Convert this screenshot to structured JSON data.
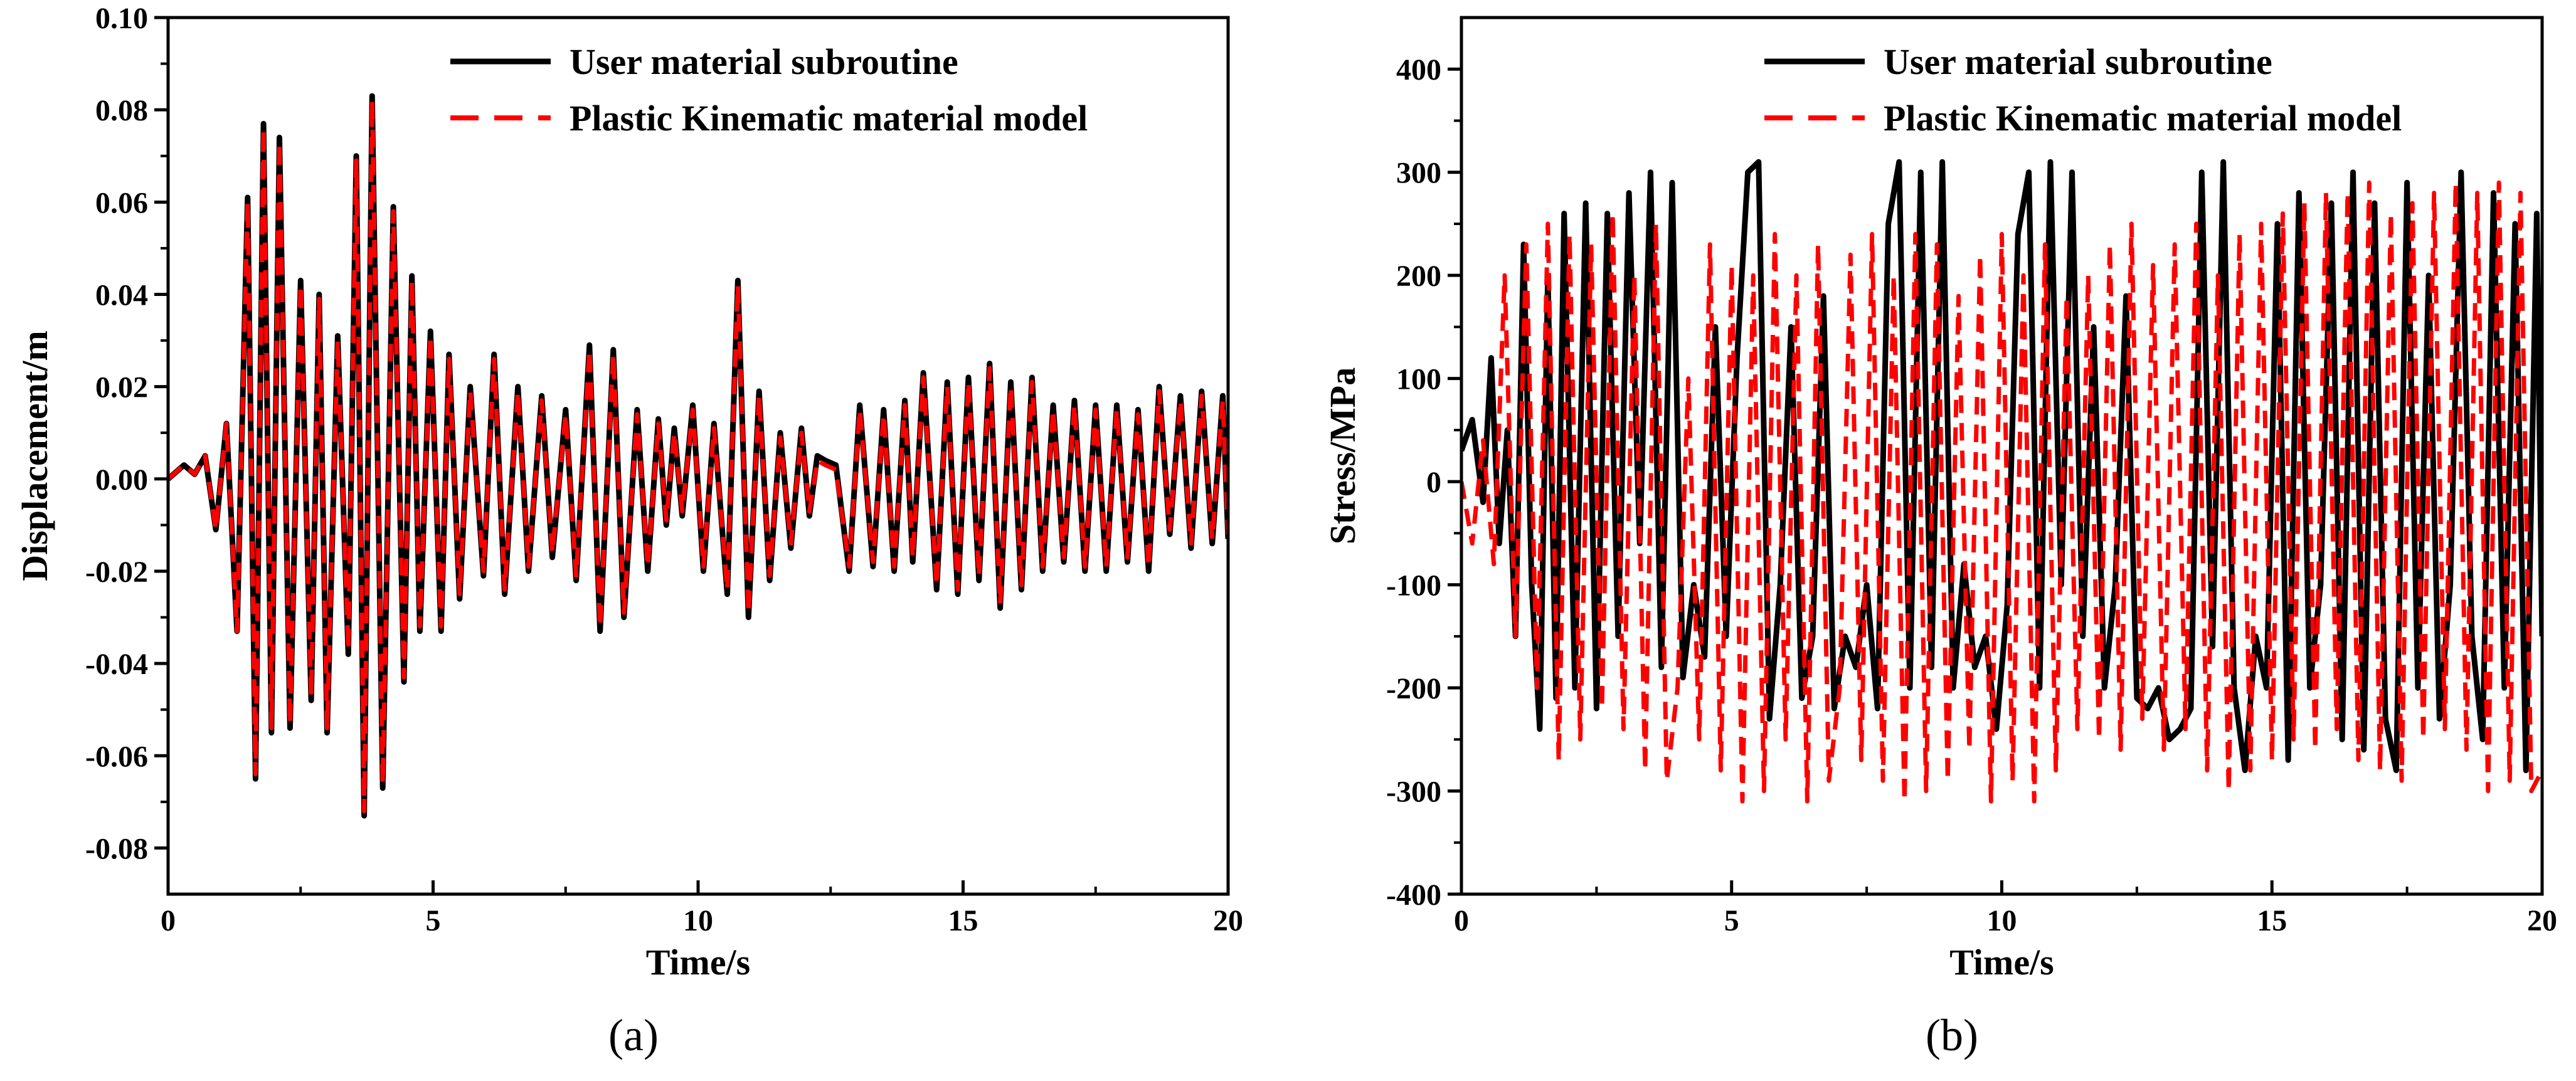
{
  "colors": {
    "user": "#000000",
    "plastic": "#ff0000"
  },
  "chart_data": [
    {
      "type": "line",
      "panel_label": "(a)",
      "xlabel": "Time/s",
      "ylabel": "Displacement/m",
      "xlim": [
        0,
        20
      ],
      "ylim": [
        -0.09,
        0.1
      ],
      "xticks": [
        0,
        5,
        10,
        15,
        20
      ],
      "xtick_labels": [
        "0",
        "5",
        "10",
        "15",
        "20"
      ],
      "yticks": [
        -0.08,
        -0.06,
        -0.04,
        -0.02,
        0,
        0.02,
        0.04,
        0.06,
        0.08,
        0.1
      ],
      "ytick_labels": [
        "-0.08",
        "-0.06",
        "-0.04",
        "-0.02",
        "0.00",
        "0.02",
        "0.04",
        "0.06",
        "0.08",
        "0.10"
      ],
      "legend_position": "top-right",
      "series": [
        {
          "name": "User material subroutine",
          "color": "#000000",
          "style": "solid",
          "x": [
            0,
            0.3,
            0.5,
            0.7,
            0.9,
            1.1,
            1.3,
            1.5,
            1.65,
            1.8,
            1.95,
            2.1,
            2.3,
            2.5,
            2.7,
            2.85,
            3.0,
            3.2,
            3.4,
            3.55,
            3.7,
            3.85,
            4.05,
            4.25,
            4.45,
            4.6,
            4.75,
            4.95,
            5.15,
            5.3,
            5.5,
            5.7,
            5.95,
            6.15,
            6.35,
            6.6,
            6.8,
            7.05,
            7.25,
            7.5,
            7.7,
            7.95,
            8.15,
            8.4,
            8.6,
            8.85,
            9.05,
            9.25,
            9.4,
            9.55,
            9.7,
            9.9,
            10.1,
            10.3,
            10.55,
            10.75,
            10.95,
            11.15,
            11.35,
            11.55,
            11.75,
            11.95,
            12.1,
            12.25,
            12.4,
            12.6,
            12.85,
            13.05,
            13.3,
            13.5,
            13.7,
            13.9,
            14.05,
            14.25,
            14.5,
            14.7,
            14.9,
            15.1,
            15.3,
            15.5,
            15.7,
            15.9,
            16.1,
            16.3,
            16.5,
            16.7,
            16.9,
            17.1,
            17.3,
            17.5,
            17.7,
            17.9,
            18.1,
            18.3,
            18.5,
            18.7,
            18.9,
            19.1,
            19.3,
            19.5,
            19.7,
            19.9,
            20
          ],
          "y": [
            0,
            0.003,
            0.001,
            0.005,
            -0.011,
            0.012,
            -0.033,
            0.061,
            -0.065,
            0.077,
            -0.055,
            0.074,
            -0.054,
            0.043,
            -0.048,
            0.04,
            -0.055,
            0.031,
            -0.038,
            0.07,
            -0.073,
            0.083,
            -0.067,
            0.059,
            -0.044,
            0.044,
            -0.033,
            0.032,
            -0.033,
            0.027,
            -0.026,
            0.02,
            -0.021,
            0.027,
            -0.025,
            0.02,
            -0.02,
            0.018,
            -0.017,
            0.015,
            -0.022,
            0.029,
            -0.033,
            0.028,
            -0.03,
            0.015,
            -0.02,
            0.013,
            -0.01,
            0.011,
            -0.008,
            0.016,
            -0.02,
            0.012,
            -0.025,
            0.043,
            -0.03,
            0.019,
            -0.022,
            0.01,
            -0.015,
            0.011,
            -0.008,
            0.005,
            0.004,
            0.003,
            -0.02,
            0.016,
            -0.019,
            0.015,
            -0.02,
            0.017,
            -0.018,
            0.023,
            -0.024,
            0.021,
            -0.025,
            0.022,
            -0.022,
            0.025,
            -0.028,
            0.021,
            -0.024,
            0.022,
            -0.02,
            0.016,
            -0.018,
            0.017,
            -0.02,
            0.016,
            -0.02,
            0.016,
            -0.018,
            0.015,
            -0.02,
            0.02,
            -0.012,
            0.018,
            -0.015,
            0.019,
            -0.014,
            0.018,
            -0.013
          ]
        },
        {
          "name": "Plastic Kinematic material model",
          "color": "#ff0000",
          "style": "dashed",
          "x": [
            0,
            0.3,
            0.5,
            0.7,
            0.9,
            1.1,
            1.3,
            1.5,
            1.65,
            1.8,
            1.95,
            2.1,
            2.3,
            2.5,
            2.7,
            2.85,
            3.0,
            3.2,
            3.4,
            3.55,
            3.7,
            3.85,
            4.05,
            4.25,
            4.45,
            4.6,
            4.75,
            4.95,
            5.15,
            5.3,
            5.5,
            5.7,
            5.95,
            6.15,
            6.35,
            6.6,
            6.8,
            7.05,
            7.25,
            7.5,
            7.7,
            7.95,
            8.15,
            8.4,
            8.6,
            8.85,
            9.05,
            9.25,
            9.4,
            9.55,
            9.7,
            9.9,
            10.1,
            10.3,
            10.55,
            10.75,
            10.95,
            11.15,
            11.35,
            11.55,
            11.75,
            11.95,
            12.1,
            12.25,
            12.4,
            12.6,
            12.85,
            13.05,
            13.3,
            13.5,
            13.7,
            13.9,
            14.05,
            14.25,
            14.5,
            14.7,
            14.9,
            15.1,
            15.3,
            15.5,
            15.7,
            15.9,
            16.1,
            16.3,
            16.5,
            16.7,
            16.9,
            17.1,
            17.3,
            17.5,
            17.7,
            17.9,
            18.1,
            18.3,
            18.5,
            18.7,
            18.9,
            19.1,
            19.3,
            19.5,
            19.7,
            19.9,
            20
          ],
          "y": [
            0,
            0.003,
            0.001,
            0.005,
            -0.011,
            0.012,
            -0.033,
            0.06,
            -0.064,
            0.076,
            -0.054,
            0.073,
            -0.053,
            0.042,
            -0.047,
            0.039,
            -0.054,
            0.03,
            -0.037,
            0.069,
            -0.072,
            0.082,
            -0.066,
            0.058,
            -0.043,
            0.043,
            -0.032,
            0.031,
            -0.032,
            0.026,
            -0.025,
            0.019,
            -0.02,
            0.026,
            -0.024,
            0.019,
            -0.019,
            0.017,
            -0.016,
            0.014,
            -0.021,
            0.028,
            -0.032,
            0.027,
            -0.029,
            0.014,
            -0.019,
            0.012,
            -0.009,
            0.01,
            -0.007,
            0.015,
            -0.019,
            0.011,
            -0.024,
            0.042,
            -0.029,
            0.018,
            -0.021,
            0.009,
            -0.014,
            0.01,
            -0.007,
            0.004,
            0.003,
            0.002,
            -0.019,
            0.015,
            -0.018,
            0.014,
            -0.019,
            0.016,
            -0.017,
            0.022,
            -0.023,
            0.02,
            -0.024,
            0.021,
            -0.021,
            0.024,
            -0.027,
            0.02,
            -0.023,
            0.021,
            -0.019,
            0.015,
            -0.017,
            0.016,
            -0.019,
            0.015,
            -0.019,
            0.015,
            -0.017,
            0.014,
            -0.019,
            0.019,
            -0.011,
            0.017,
            -0.014,
            0.018,
            -0.013,
            0.017,
            -0.012
          ]
        }
      ]
    },
    {
      "type": "line",
      "panel_label": "(b)",
      "xlabel": "Time/s",
      "ylabel": "Stress/MPa",
      "xlim": [
        0,
        20
      ],
      "ylim": [
        -400,
        450
      ],
      "xticks": [
        0,
        5,
        10,
        15,
        20
      ],
      "xtick_labels": [
        "0",
        "5",
        "10",
        "15",
        "20"
      ],
      "yticks": [
        -400,
        -300,
        -200,
        -100,
        0,
        100,
        200,
        300,
        400
      ],
      "ytick_labels": [
        "-400",
        "-300",
        "-200",
        "-100",
        "0",
        "100",
        "200",
        "300",
        "400"
      ],
      "legend_position": "top-right",
      "series": [
        {
          "name": "User material subroutine",
          "color": "#000000",
          "style": "solid",
          "x": [
            0,
            0.2,
            0.4,
            0.55,
            0.7,
            0.85,
            1.0,
            1.15,
            1.3,
            1.45,
            1.6,
            1.75,
            1.9,
            2.1,
            2.3,
            2.5,
            2.7,
            2.9,
            3.1,
            3.3,
            3.5,
            3.7,
            3.9,
            4.1,
            4.3,
            4.5,
            4.7,
            4.9,
            5.1,
            5.3,
            5.5,
            5.7,
            5.9,
            6.1,
            6.3,
            6.5,
            6.7,
            6.9,
            7.1,
            7.3,
            7.5,
            7.7,
            7.9,
            8.1,
            8.3,
            8.5,
            8.7,
            8.9,
            9.1,
            9.3,
            9.5,
            9.7,
            9.9,
            10.1,
            10.3,
            10.5,
            10.7,
            10.9,
            11.1,
            11.3,
            11.5,
            11.7,
            11.9,
            12.1,
            12.3,
            12.5,
            12.7,
            12.9,
            13.1,
            13.3,
            13.5,
            13.7,
            13.9,
            14.1,
            14.3,
            14.5,
            14.7,
            14.9,
            15.1,
            15.3,
            15.5,
            15.7,
            15.9,
            16.1,
            16.3,
            16.5,
            16.7,
            16.9,
            17.1,
            17.3,
            17.5,
            17.7,
            17.9,
            18.1,
            18.3,
            18.5,
            18.7,
            18.9,
            19.1,
            19.3,
            19.5,
            19.7,
            19.9,
            20
          ],
          "y": [
            30,
            60,
            -20,
            120,
            -60,
            50,
            -150,
            230,
            -100,
            -240,
            200,
            -210,
            260,
            -200,
            270,
            -220,
            260,
            -150,
            280,
            -60,
            300,
            -180,
            290,
            -190,
            -100,
            -170,
            150,
            -150,
            120,
            300,
            310,
            -230,
            -100,
            150,
            -210,
            -150,
            180,
            -220,
            -150,
            -180,
            -100,
            -220,
            250,
            310,
            -200,
            300,
            -180,
            310,
            -200,
            -80,
            -180,
            -150,
            -240,
            -120,
            240,
            300,
            -200,
            310,
            -100,
            300,
            -150,
            150,
            -200,
            -100,
            180,
            -210,
            -220,
            -200,
            -250,
            -240,
            -220,
            300,
            -160,
            310,
            -200,
            -280,
            -150,
            -200,
            250,
            -270,
            280,
            -200,
            -100,
            270,
            -250,
            300,
            -260,
            270,
            -230,
            -280,
            290,
            -200,
            200,
            -230,
            -100,
            300,
            -150,
            -250,
            280,
            -200,
            250,
            -280,
            260,
            -150
          ]
        },
        {
          "name": "Plastic Kinematic material model",
          "color": "#ff0000",
          "style": "dashed",
          "x": [
            0,
            0.2,
            0.4,
            0.6,
            0.8,
            1.0,
            1.2,
            1.4,
            1.6,
            1.8,
            2.0,
            2.2,
            2.4,
            2.6,
            2.8,
            3.0,
            3.2,
            3.4,
            3.6,
            3.8,
            4.0,
            4.2,
            4.4,
            4.6,
            4.8,
            5.0,
            5.2,
            5.4,
            5.6,
            5.8,
            6.0,
            6.2,
            6.4,
            6.6,
            6.8,
            7.0,
            7.2,
            7.4,
            7.6,
            7.8,
            8.0,
            8.2,
            8.4,
            8.6,
            8.8,
            9.0,
            9.2,
            9.4,
            9.6,
            9.8,
            10.0,
            10.2,
            10.4,
            10.6,
            10.8,
            11.0,
            11.2,
            11.4,
            11.6,
            11.8,
            12.0,
            12.2,
            12.4,
            12.6,
            12.8,
            13.0,
            13.2,
            13.4,
            13.6,
            13.8,
            14.0,
            14.2,
            14.4,
            14.6,
            14.8,
            15.0,
            15.2,
            15.4,
            15.6,
            15.8,
            16.0,
            16.2,
            16.4,
            16.6,
            16.8,
            17.0,
            17.2,
            17.4,
            17.6,
            17.8,
            18.0,
            18.2,
            18.4,
            18.6,
            18.8,
            19.0,
            19.2,
            19.4,
            19.6,
            19.8,
            20
          ],
          "y": [
            0,
            -60,
            40,
            -80,
            200,
            -150,
            230,
            -200,
            250,
            -270,
            240,
            -250,
            230,
            -220,
            260,
            -240,
            200,
            -280,
            250,
            -290,
            -200,
            100,
            -250,
            230,
            -280,
            210,
            -310,
            200,
            -300,
            240,
            -250,
            200,
            -310,
            230,
            -290,
            -200,
            220,
            -270,
            240,
            -290,
            200,
            -310,
            240,
            -300,
            230,
            -290,
            180,
            -260,
            220,
            -310,
            240,
            -290,
            200,
            -310,
            230,
            -280,
            180,
            -240,
            200,
            -250,
            230,
            -260,
            250,
            -230,
            210,
            -260,
            230,
            -240,
            250,
            -280,
            200,
            -300,
            240,
            -280,
            250,
            -270,
            260,
            -250,
            270,
            -260,
            280,
            -240,
            280,
            -270,
            290,
            -280,
            260,
            -290,
            270,
            -250,
            280,
            -240,
            290,
            -260,
            280,
            -300,
            290,
            -290,
            280,
            -300,
            -280
          ]
        }
      ]
    }
  ]
}
